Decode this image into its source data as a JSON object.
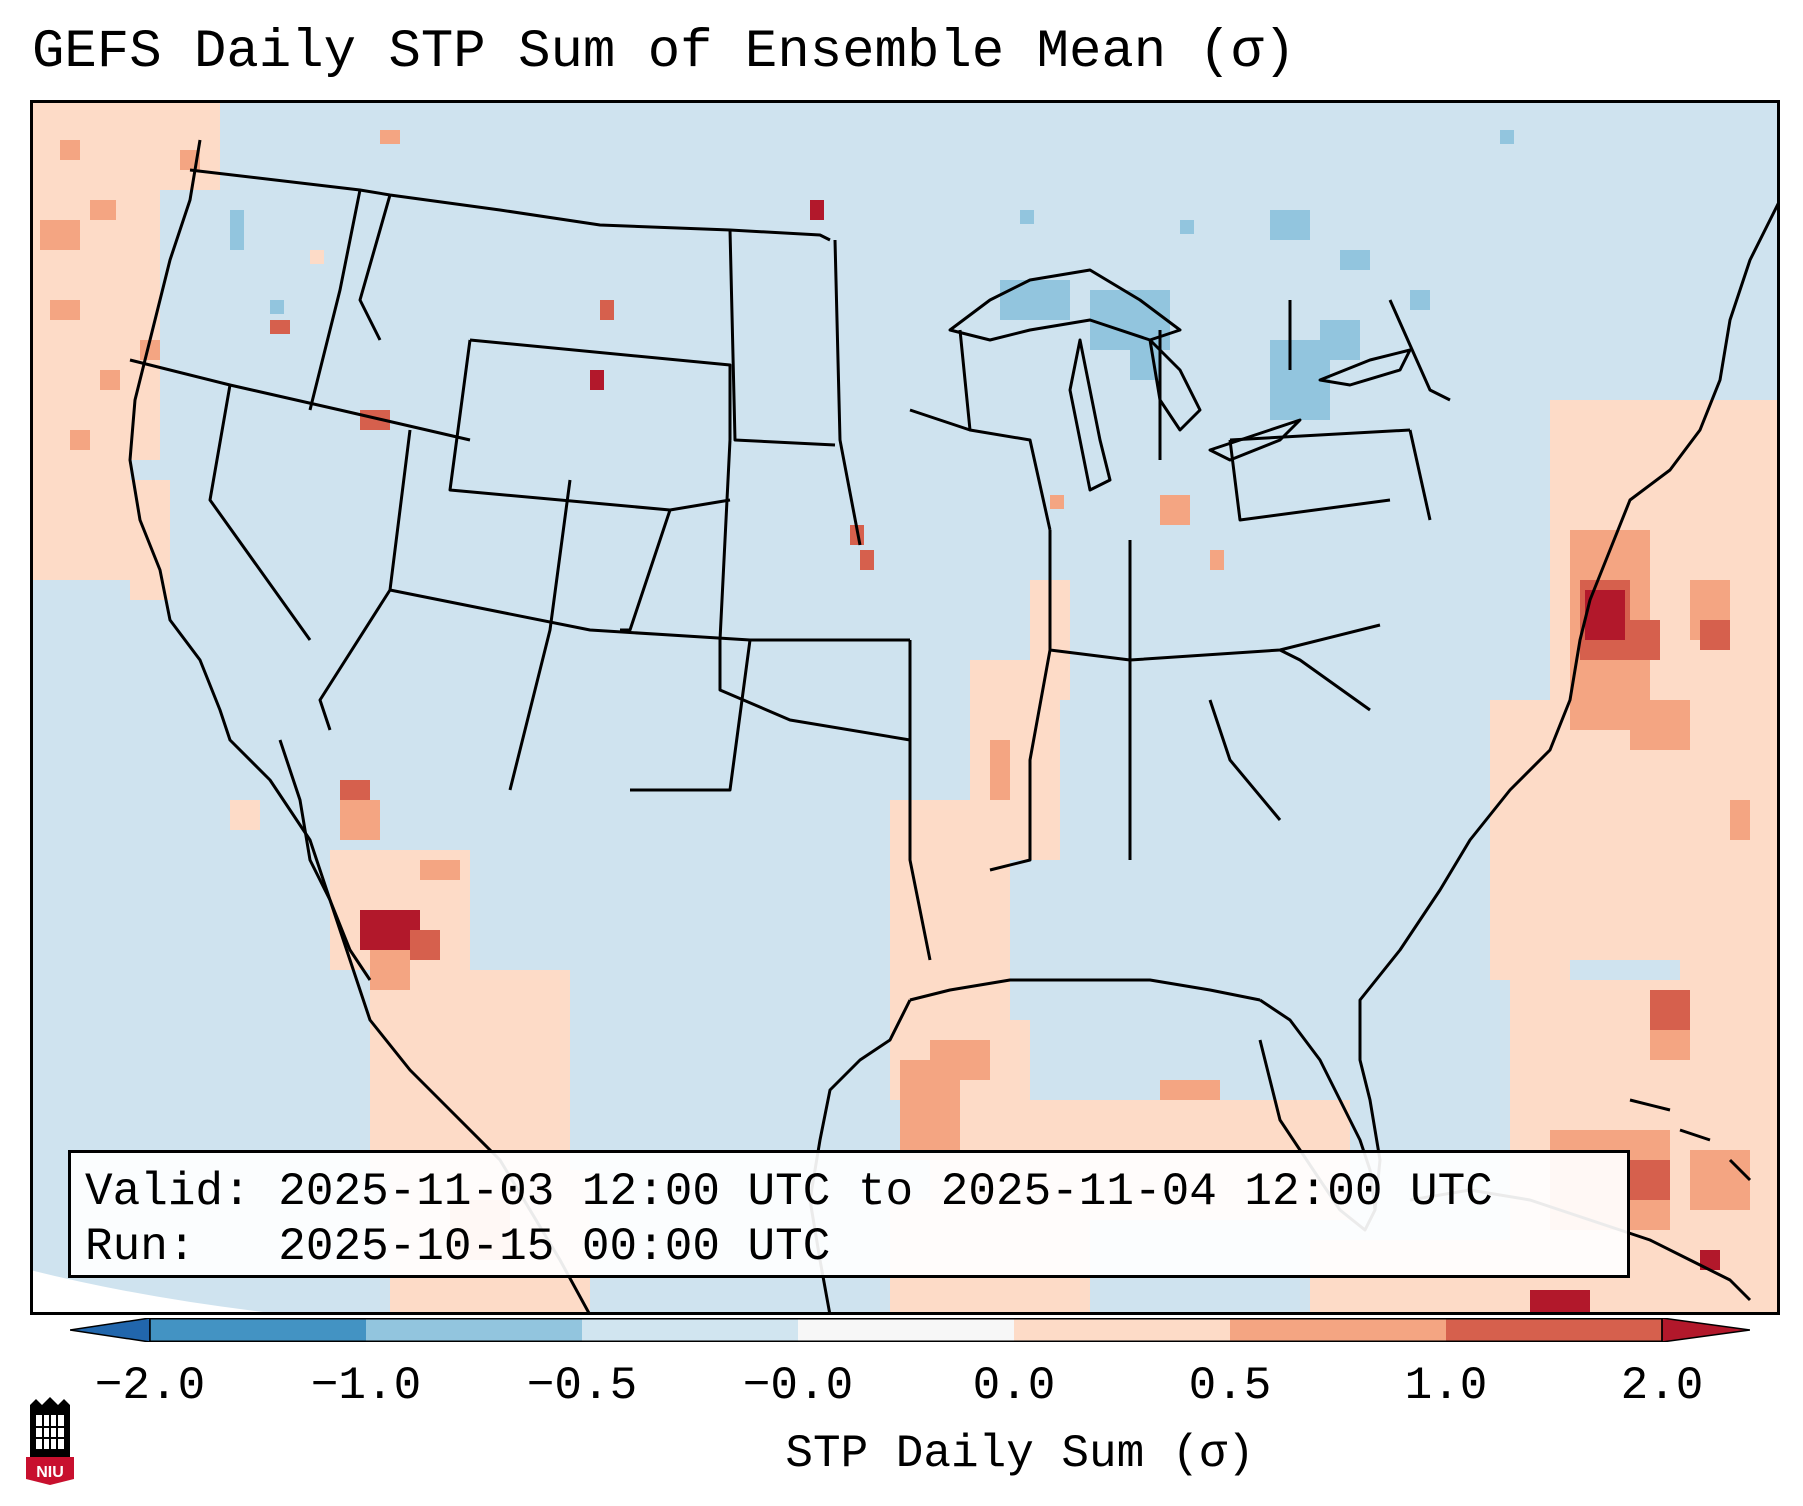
{
  "title": "GEFS Daily STP Sum of Ensemble Mean (σ)",
  "map": {
    "region": "CONUS",
    "colors": {
      "background": "#cfe3ef",
      "border": "#000000",
      "neg_light": "#92c5de",
      "neg_mid": "#4393c3",
      "pos_light": "#fddbc7",
      "pos_mid": "#f4a582",
      "pos_strong": "#d6604d",
      "pos_extreme": "#b2182b"
    },
    "highlights": [
      {
        "area": "New Jersey / Delaware coast",
        "level": "2.0"
      },
      {
        "area": "Gulf of California",
        "level": "2.0"
      },
      {
        "area": "Arkansas / Mississippi Valley",
        "level": "0.0 to 0.5"
      },
      {
        "area": "Great Lakes",
        "level": "-0.5"
      }
    ]
  },
  "info": {
    "valid_label": "Valid:",
    "valid_value": "2025-11-03 12:00 UTC to 2025-11-04 12:00 UTC",
    "run_label": "Run:",
    "run_value": "2025-10-15 00:00 UTC"
  },
  "colorbar": {
    "label": "STP Daily Sum (σ)",
    "ticks": [
      "−2.0",
      "−1.0",
      "−0.5",
      "−0.0",
      "0.0",
      "0.5",
      "1.0",
      "2.0"
    ],
    "colors": [
      "#2166ac",
      "#4393c3",
      "#92c5de",
      "#d1e5f0",
      "#f7f7f7",
      "#fddbc7",
      "#f4a582",
      "#d6604d",
      "#b2182b"
    ]
  },
  "logo": {
    "text": "NIU",
    "colors": {
      "primary": "#c8102e",
      "secondary": "#000000"
    }
  }
}
